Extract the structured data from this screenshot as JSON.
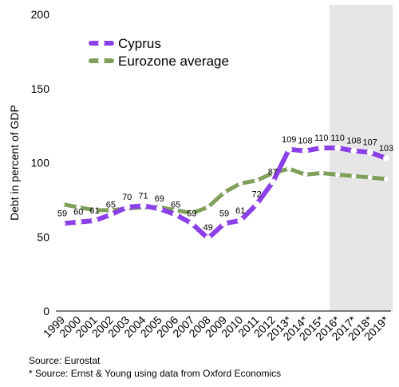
{
  "chart_data": {
    "type": "line",
    "x": [
      "1999",
      "2000",
      "2001",
      "2002",
      "2003",
      "2004",
      "2005",
      "2006",
      "2007",
      "2008",
      "2009",
      "2010",
      "2011",
      "2012",
      "2013*",
      "2014*",
      "2015*",
      "2016*",
      "2017*",
      "2018*",
      "2019*"
    ],
    "series": [
      {
        "name": "Cyprus",
        "color": "#8b3fe8",
        "values": [
          59,
          60,
          61,
          65,
          70,
          71,
          69,
          65,
          59,
          49,
          59,
          61,
          72,
          87,
          109,
          108,
          110,
          110,
          108,
          107,
          103
        ],
        "data_labels": [
          "59",
          "60",
          "61",
          "65",
          "70",
          "71",
          "69",
          "65",
          "59",
          "49",
          "59",
          "61",
          "72",
          "87",
          "109",
          "108",
          "110",
          "110",
          "108",
          "107",
          "103"
        ]
      },
      {
        "name": "Eurozone average",
        "color": "#7f9f5a",
        "values": [
          72,
          70,
          68,
          68,
          69,
          70,
          70,
          68,
          66,
          70,
          80,
          86,
          88,
          93,
          96,
          92,
          93,
          92,
          91,
          90,
          89
        ]
      }
    ],
    "ylabel": "Debt in percent of GDP",
    "ylim": [
      0,
      200
    ],
    "yticks": [
      "0",
      "50",
      "100",
      "150",
      "200"
    ],
    "grid": false,
    "legend": "top-left",
    "forecast_shade_from": "2016*",
    "shade_color": "#e6e6e6"
  },
  "sources": {
    "line1": "Source: Eurostat",
    "line2": "* Source: Ernst & Young using data from Oxford Economics"
  }
}
